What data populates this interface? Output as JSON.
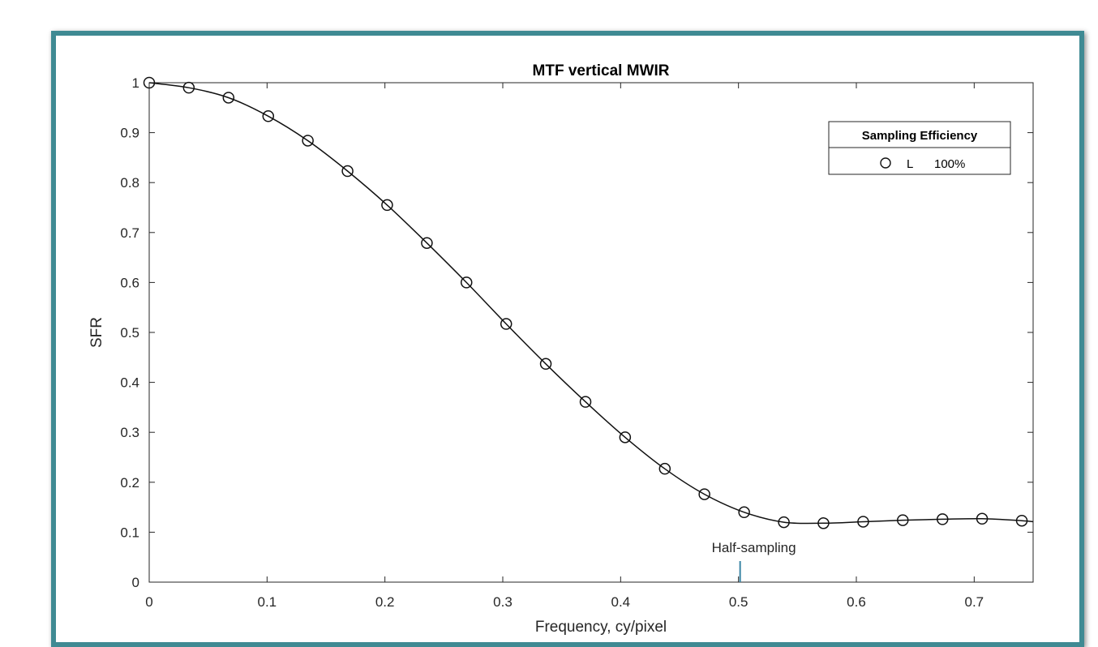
{
  "chart_data": {
    "type": "line",
    "title": "MTF vertical MWIR",
    "xlabel": "Frequency, cy/pixel",
    "ylabel": "SFR",
    "xlim": [
      0,
      0.75
    ],
    "ylim": [
      0,
      1
    ],
    "x_ticks": [
      "0",
      "0.1",
      "0.2",
      "0.3",
      "0.4",
      "0.5",
      "0.6",
      "0.7"
    ],
    "y_ticks": [
      "0",
      "0.1",
      "0.2",
      "0.3",
      "0.4",
      "0.5",
      "0.6",
      "0.7",
      "0.8",
      "0.9",
      "1"
    ],
    "grid": false,
    "legend": {
      "title": "Sampling Efficiency",
      "placement": "top-right",
      "entries": [
        {
          "marker": "O",
          "label": "L",
          "value": "100%"
        }
      ]
    },
    "annotations": [
      {
        "text": "Half-sampling",
        "x": 0.5
      }
    ],
    "series": [
      {
        "marker": "circle",
        "x": [
          0,
          0.0336,
          0.0673,
          0.101,
          0.1346,
          0.1683,
          0.2019,
          0.2356,
          0.2692,
          0.3029,
          0.3365,
          0.3702,
          0.4038,
          0.4375,
          0.4711,
          0.5048,
          0.5385,
          0.5721,
          0.6058,
          0.6394,
          0.6731,
          0.7067,
          0.7404
        ],
        "y": [
          1.0,
          0.99,
          0.97,
          0.933,
          0.884,
          0.823,
          0.755,
          0.679,
          0.6,
          0.517,
          0.437,
          0.361,
          0.29,
          0.227,
          0.176,
          0.14,
          0.12,
          0.118,
          0.121,
          0.124,
          0.126,
          0.127,
          0.123
        ]
      }
    ]
  }
}
